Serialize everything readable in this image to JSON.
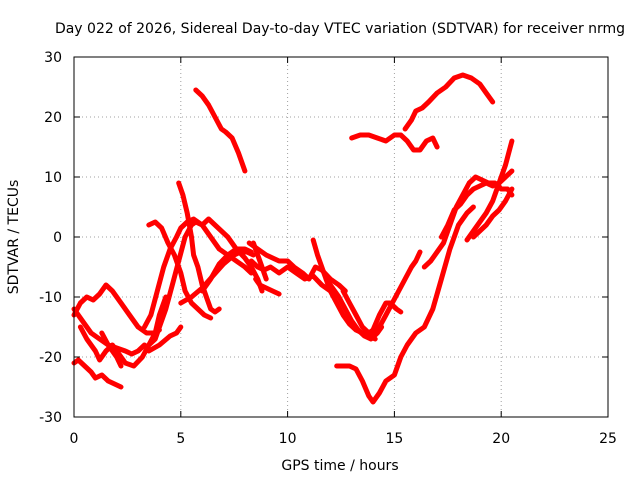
{
  "chart_data": {
    "type": "line",
    "title": "Day 022 of 2026, Sidereal Day-to-day VTEC variation (SDTVAR) for receiver nrmg",
    "xlabel": "GPS time / hours",
    "ylabel": "SDTVAR / TECUs",
    "xlim": [
      0,
      25
    ],
    "ylim": [
      -30,
      30
    ],
    "xticks": [
      0,
      5,
      10,
      15,
      20,
      25
    ],
    "yticks": [
      -30,
      -20,
      -10,
      0,
      10,
      20,
      30
    ],
    "grid": true,
    "series_color": "#ff0000",
    "series": [
      {
        "x": [
          0.0,
          0.2,
          0.5,
          0.8,
          1.0,
          1.3,
          1.6,
          1.9,
          2.2
        ],
        "y": [
          -21,
          -20.5,
          -21.5,
          -22.5,
          -23.5,
          -23,
          -24,
          -24.5,
          -25
        ]
      },
      {
        "x": [
          0.0,
          0.3,
          0.6,
          0.9,
          1.2,
          1.5,
          1.8,
          2.2,
          2.6,
          3.0,
          3.4,
          3.8,
          4.0
        ],
        "y": [
          -13,
          -11,
          -10,
          -10.5,
          -9.5,
          -8,
          -9,
          -11,
          -13,
          -15,
          -16,
          -16,
          -15.5
        ]
      },
      {
        "x": [
          0.0,
          0.4,
          0.8,
          1.2,
          1.6,
          2.0,
          2.4,
          2.7,
          3.0,
          3.3
        ],
        "y": [
          -12,
          -14,
          -16,
          -17,
          -18,
          -18.5,
          -19,
          -19.5,
          -19,
          -18
        ]
      },
      {
        "x": [
          0.3,
          0.6,
          1.0,
          1.2,
          1.5,
          1.8,
          2.1,
          2.4,
          2.8,
          3.2,
          3.5,
          3.8,
          4.0,
          4.3
        ],
        "y": [
          -15,
          -17,
          -19,
          -20.5,
          -19,
          -18,
          -19.5,
          -21,
          -21.5,
          -20,
          -18,
          -16,
          -13,
          -10
        ]
      },
      {
        "x": [
          1.3,
          1.6,
          2.0,
          2.2
        ],
        "y": [
          -16,
          -18,
          -20,
          -21.5
        ]
      },
      {
        "x": [
          3.5,
          3.8,
          4.0,
          4.3,
          4.6,
          4.9,
          5.2,
          5.5,
          5.7,
          6.0,
          6.3,
          6.6,
          6.9,
          7.2,
          7.6,
          8.0,
          8.3,
          8.6,
          8.8
        ],
        "y": [
          -18,
          -17,
          -15,
          -12,
          -8,
          -4,
          0,
          2,
          2.5,
          2,
          3,
          2,
          1,
          0,
          -2,
          -3.5,
          -5,
          -7,
          -9
        ]
      },
      {
        "x": [
          3.5,
          3.8,
          4.1,
          4.4,
          4.7,
          5.0,
          5.2,
          5.5,
          5.8,
          6.1,
          6.4
        ],
        "y": [
          2,
          2.5,
          1.5,
          -1,
          -3,
          -6,
          -9,
          -11,
          -12,
          -13,
          -13.5
        ]
      },
      {
        "x": [
          3.3,
          3.6,
          3.9,
          4.2,
          4.5,
          4.8,
          5.0,
          5.3,
          5.6,
          6.0,
          6.4,
          6.8,
          7.2,
          7.6,
          8.0,
          8.3
        ],
        "y": [
          -15,
          -13,
          -9,
          -5,
          -2,
          0,
          1.5,
          2.5,
          3,
          2,
          0,
          -2,
          -3,
          -4,
          -5,
          -6
        ]
      },
      {
        "x": [
          3.5,
          4.0,
          4.5,
          4.8,
          5.0
        ],
        "y": [
          -19,
          -18,
          -16.5,
          -16,
          -15
        ]
      },
      {
        "x": [
          4.9,
          5.1,
          5.3,
          5.5,
          5.6,
          5.8,
          6.0,
          6.2,
          6.4,
          6.6,
          6.8
        ],
        "y": [
          9,
          7,
          4,
          0,
          -3,
          -5,
          -8,
          -10,
          -12,
          -12.5,
          -12
        ]
      },
      {
        "x": [
          5.0,
          5.5,
          6.0,
          6.5,
          7.0,
          7.5,
          7.8,
          8.1,
          8.4
        ],
        "y": [
          -11,
          -10,
          -8.5,
          -6.5,
          -4.5,
          -3,
          -2.5,
          -2.5,
          -3
        ]
      },
      {
        "x": [
          6.0,
          6.4,
          6.8,
          7.2,
          7.6,
          8.0,
          8.3
        ],
        "y": [
          -9,
          -7,
          -4.5,
          -3,
          -2,
          -2,
          -2.5
        ]
      },
      {
        "x": [
          5.7,
          6.0,
          6.3,
          6.6,
          6.9,
          7.1,
          7.4,
          7.7,
          8.0
        ],
        "y": [
          24.5,
          23.5,
          22,
          20,
          18,
          17.5,
          16.5,
          14,
          11
        ]
      },
      {
        "x": [
          8.2,
          8.6,
          9.0,
          9.3,
          9.6,
          10.0,
          10.3,
          10.7,
          11.0,
          11.3,
          11.6,
          12.0,
          12.4,
          12.7
        ],
        "y": [
          -1,
          -2,
          -3,
          -3.5,
          -4,
          -4,
          -5,
          -6,
          -7,
          -5,
          -5.5,
          -7,
          -8,
          -9
        ]
      },
      {
        "x": [
          8.3,
          8.6,
          8.9,
          9.2,
          9.6,
          10.0,
          10.4,
          10.8,
          11.2,
          11.6,
          12.0
        ],
        "y": [
          -4,
          -5,
          -5.5,
          -5,
          -6,
          -5,
          -6,
          -7,
          -6.5,
          -8,
          -9
        ]
      },
      {
        "x": [
          8.5,
          8.7,
          9.0,
          9.3,
          9.6
        ],
        "y": [
          -7,
          -8,
          -8.5,
          -9,
          -9.5
        ]
      },
      {
        "x": [
          8.4,
          8.6,
          8.8,
          9.0
        ],
        "y": [
          -1,
          -3,
          -5,
          -7
        ]
      },
      {
        "x": [
          11.2,
          11.4,
          11.7,
          12.0,
          12.3,
          12.6,
          12.9,
          13.2,
          13.5,
          13.8,
          14.1
        ],
        "y": [
          -0.5,
          -3,
          -6,
          -9,
          -11,
          -13,
          -14.5,
          -15.5,
          -16,
          -16.5,
          -17
        ]
      },
      {
        "x": [
          11.8,
          12.1,
          12.4,
          12.7,
          13.0,
          13.3,
          13.6,
          13.9,
          14.2,
          14.4
        ],
        "y": [
          -7,
          -8.5,
          -10,
          -12,
          -14,
          -15.5,
          -16.5,
          -17,
          -16,
          -15
        ]
      },
      {
        "x": [
          12.6,
          12.9,
          13.2,
          13.5,
          13.8,
          14.0,
          14.3,
          14.6,
          14.8,
          15.1,
          15.3
        ],
        "y": [
          -9,
          -11,
          -13,
          -15,
          -16,
          -15.5,
          -13,
          -11,
          -11,
          -12,
          -12.5
        ]
      },
      {
        "x": [
          14.0,
          14.3,
          14.6,
          14.9,
          15.2,
          15.5,
          15.8,
          16.0,
          16.2
        ],
        "y": [
          -16,
          -15,
          -13,
          -11,
          -9,
          -7,
          -5,
          -4,
          -2.5
        ]
      },
      {
        "x": [
          12.3,
          12.6,
          12.9,
          13.2,
          13.5,
          13.8,
          14.0,
          14.3,
          14.6,
          15.0,
          15.3,
          15.6,
          16.0,
          16.4,
          16.8,
          17.2,
          17.6,
          18.0,
          18.4,
          18.7
        ],
        "y": [
          -21.5,
          -21.5,
          -21.5,
          -22,
          -24,
          -26.5,
          -27.5,
          -26,
          -24,
          -23,
          -20,
          -18,
          -16,
          -15,
          -12,
          -7,
          -2,
          2,
          4,
          5
        ]
      },
      {
        "x": [
          13.0,
          13.4,
          13.8,
          14.2,
          14.6,
          15.0,
          15.3,
          15.6,
          15.9,
          16.2,
          16.5,
          16.8,
          17.0
        ],
        "y": [
          16.5,
          17,
          17,
          16.5,
          16,
          17,
          17,
          16,
          14.5,
          14.5,
          16,
          16.5,
          15
        ]
      },
      {
        "x": [
          15.5,
          15.8,
          16.0,
          16.3,
          16.6,
          17.0,
          17.4,
          17.8,
          18.2,
          18.6,
          19.0,
          19.3,
          19.6
        ],
        "y": [
          18,
          19.5,
          21,
          21.5,
          22.5,
          24,
          25,
          26.5,
          27,
          26.5,
          25.5,
          24,
          22.5
        ]
      },
      {
        "x": [
          16.4,
          16.7,
          17.0,
          17.3,
          17.6,
          17.9,
          18.2,
          18.5,
          18.8,
          19.1,
          19.4,
          19.7,
          20.0,
          20.3,
          20.5
        ],
        "y": [
          -5,
          -4,
          -2.5,
          -1,
          2,
          5,
          7,
          9,
          10,
          9.5,
          9,
          9,
          8,
          8,
          7
        ]
      },
      {
        "x": [
          17.2,
          17.5,
          17.8,
          18.1,
          18.4,
          18.7,
          19.0,
          19.3,
          19.6,
          19.9,
          20.2,
          20.5
        ],
        "y": [
          0,
          2,
          4.5,
          5.5,
          7,
          8,
          8.5,
          9,
          8.5,
          9,
          10,
          11
        ]
      },
      {
        "x": [
          18.4,
          18.7,
          19.0,
          19.3,
          19.6,
          19.9,
          20.2,
          20.5
        ],
        "y": [
          -0.5,
          1,
          2.5,
          4,
          6,
          9,
          12,
          16
        ]
      },
      {
        "x": [
          18.7,
          19.0,
          19.3,
          19.6,
          19.9,
          20.2,
          20.5
        ],
        "y": [
          0,
          1,
          2,
          3.5,
          4.5,
          6,
          8
        ]
      }
    ]
  }
}
